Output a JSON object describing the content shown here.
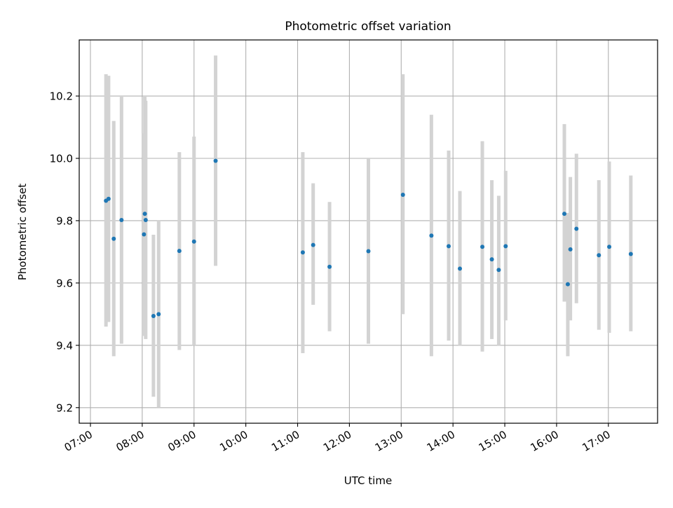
{
  "chart_data": {
    "type": "scatter",
    "title": "Photometric offset variation",
    "xlabel": "UTC time",
    "ylabel": "Photometric offset",
    "x_format": "HH:MM",
    "xlim": [
      "06:47",
      "17:57"
    ],
    "ylim": [
      9.15,
      10.38
    ],
    "x_ticks": [
      "07:00",
      "08:00",
      "09:00",
      "10:00",
      "11:00",
      "12:00",
      "13:00",
      "14:00",
      "15:00",
      "16:00",
      "17:00"
    ],
    "y_ticks": [
      9.2,
      9.4,
      9.6,
      9.8,
      10.0,
      10.2
    ],
    "grid": true,
    "point_color": "#1f77b4",
    "errorbar_color": "#d3d3d3",
    "points": [
      {
        "x": "07:18",
        "y": 9.864,
        "low": 9.46,
        "high": 10.27
      },
      {
        "x": "07:21",
        "y": 9.87,
        "low": 9.475,
        "high": 10.265
      },
      {
        "x": "07:27",
        "y": 9.742,
        "low": 9.365,
        "high": 10.12
      },
      {
        "x": "07:36",
        "y": 9.802,
        "low": 9.405,
        "high": 10.2
      },
      {
        "x": "08:02",
        "y": 9.756,
        "low": 9.43,
        "high": 10.08
      },
      {
        "x": "08:03",
        "y": 9.822,
        "low": 9.44,
        "high": 10.2
      },
      {
        "x": "08:04",
        "y": 9.802,
        "low": 9.42,
        "high": 10.185
      },
      {
        "x": "08:13",
        "y": 9.494,
        "low": 9.235,
        "high": 9.755
      },
      {
        "x": "08:19",
        "y": 9.5,
        "low": 9.2,
        "high": 9.8
      },
      {
        "x": "08:43",
        "y": 9.703,
        "low": 9.385,
        "high": 10.02
      },
      {
        "x": "09:00",
        "y": 9.733,
        "low": 9.4,
        "high": 10.07
      },
      {
        "x": "09:25",
        "y": 9.992,
        "low": 9.655,
        "high": 10.33
      },
      {
        "x": "11:06",
        "y": 9.698,
        "low": 9.375,
        "high": 10.02
      },
      {
        "x": "11:18",
        "y": 9.722,
        "low": 9.53,
        "high": 9.92
      },
      {
        "x": "11:37",
        "y": 9.652,
        "low": 9.445,
        "high": 9.86
      },
      {
        "x": "12:22",
        "y": 9.702,
        "low": 9.405,
        "high": 10.0
      },
      {
        "x": "13:02",
        "y": 9.883,
        "low": 9.5,
        "high": 10.27
      },
      {
        "x": "13:35",
        "y": 9.752,
        "low": 9.365,
        "high": 10.14
      },
      {
        "x": "13:55",
        "y": 9.718,
        "low": 9.415,
        "high": 10.025
      },
      {
        "x": "14:08",
        "y": 9.646,
        "low": 9.4,
        "high": 9.895
      },
      {
        "x": "14:34",
        "y": 9.716,
        "low": 9.38,
        "high": 10.055
      },
      {
        "x": "14:45",
        "y": 9.676,
        "low": 9.42,
        "high": 9.93
      },
      {
        "x": "14:53",
        "y": 9.642,
        "low": 9.4,
        "high": 9.88
      },
      {
        "x": "15:01",
        "y": 9.718,
        "low": 9.48,
        "high": 9.96
      },
      {
        "x": "16:09",
        "y": 9.822,
        "low": 9.54,
        "high": 10.11
      },
      {
        "x": "16:13",
        "y": 9.596,
        "low": 9.365,
        "high": 9.825
      },
      {
        "x": "16:16",
        "y": 9.708,
        "low": 9.48,
        "high": 9.94
      },
      {
        "x": "16:23",
        "y": 9.774,
        "low": 9.535,
        "high": 10.015
      },
      {
        "x": "16:49",
        "y": 9.689,
        "low": 9.45,
        "high": 9.93
      },
      {
        "x": "17:01",
        "y": 9.716,
        "low": 9.44,
        "high": 9.99
      },
      {
        "x": "17:26",
        "y": 9.693,
        "low": 9.445,
        "high": 9.945
      }
    ]
  }
}
